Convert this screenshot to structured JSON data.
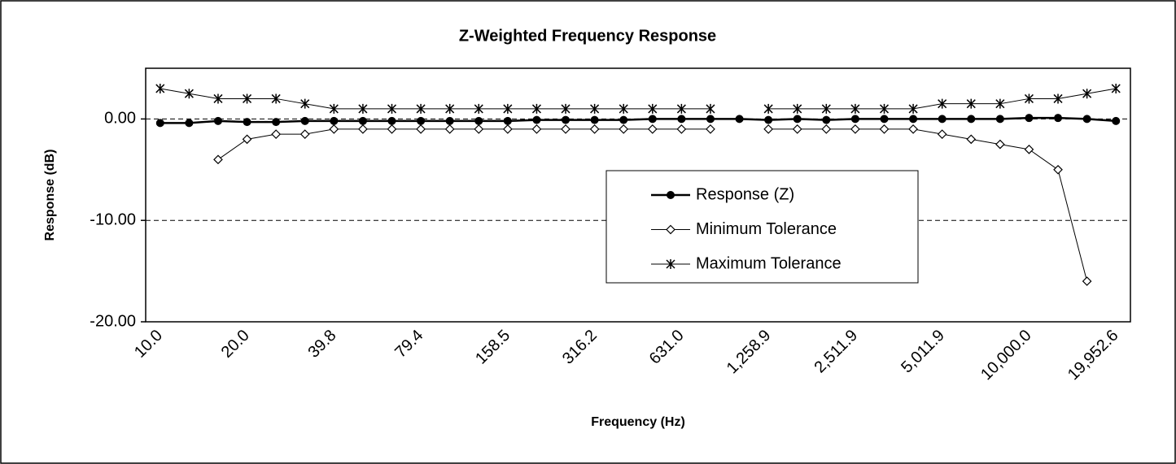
{
  "chart_data": {
    "type": "line",
    "title": "Z-Weighted Frequency Response",
    "x_label": "Frequency (Hz)",
    "y_label": "Response (dB)",
    "categories": [
      "10.0",
      null,
      null,
      "20.0",
      null,
      null,
      "39.8",
      null,
      null,
      "79.4",
      null,
      null,
      "158.5",
      null,
      null,
      "316.2",
      null,
      null,
      "631.0",
      null,
      null,
      "1,258.9",
      null,
      null,
      "2,511.9",
      null,
      null,
      "5,011.9",
      null,
      null,
      "10,000.0",
      null,
      null,
      "19,952.6"
    ],
    "series": [
      {
        "name": "Response (Z)",
        "color": "#000000",
        "marker": "circle",
        "line_width": 2.5,
        "values": [
          -0.4,
          -0.4,
          -0.2,
          -0.3,
          -0.3,
          -0.2,
          -0.2,
          -0.2,
          -0.2,
          -0.2,
          -0.2,
          -0.2,
          -0.2,
          -0.1,
          -0.1,
          -0.1,
          -0.1,
          0,
          0,
          0,
          0,
          -0.1,
          0,
          -0.1,
          0,
          0,
          0,
          0,
          0,
          0,
          0.1,
          0.1,
          0,
          -0.2
        ]
      },
      {
        "name": "Minimum Tolerance",
        "color": "#000000",
        "marker": "diamond",
        "line_width": 1,
        "values": [
          null,
          null,
          -4.0,
          -2.0,
          -1.5,
          -1.5,
          -1.0,
          -1.0,
          -1.0,
          -1.0,
          -1.0,
          -1.0,
          -1.0,
          -1.0,
          -1.0,
          -1.0,
          -1.0,
          -1.0,
          -1.0,
          -1.0,
          null,
          -1.0,
          -1.0,
          -1.0,
          -1.0,
          -1.0,
          -1.0,
          -1.5,
          -2.0,
          -2.5,
          -3.0,
          -5.0,
          -16.0,
          null
        ]
      },
      {
        "name": "Maximum Tolerance",
        "color": "#000000",
        "marker": "star",
        "line_width": 1,
        "values": [
          3.0,
          2.5,
          2.0,
          2.0,
          2.0,
          1.5,
          1.0,
          1.0,
          1.0,
          1.0,
          1.0,
          1.0,
          1.0,
          1.0,
          1.0,
          1.0,
          1.0,
          1.0,
          1.0,
          1.0,
          null,
          1.0,
          1.0,
          1.0,
          1.0,
          1.0,
          1.0,
          1.5,
          1.5,
          1.5,
          2.0,
          2.0,
          2.5,
          3.0
        ]
      }
    ],
    "ylim": [
      -20,
      5
    ],
    "yticks": [
      {
        "value": -20,
        "label": "-20.00"
      },
      {
        "value": -10,
        "label": "-10.00"
      },
      {
        "value": 0,
        "label": "0.00"
      }
    ],
    "grid": true
  }
}
